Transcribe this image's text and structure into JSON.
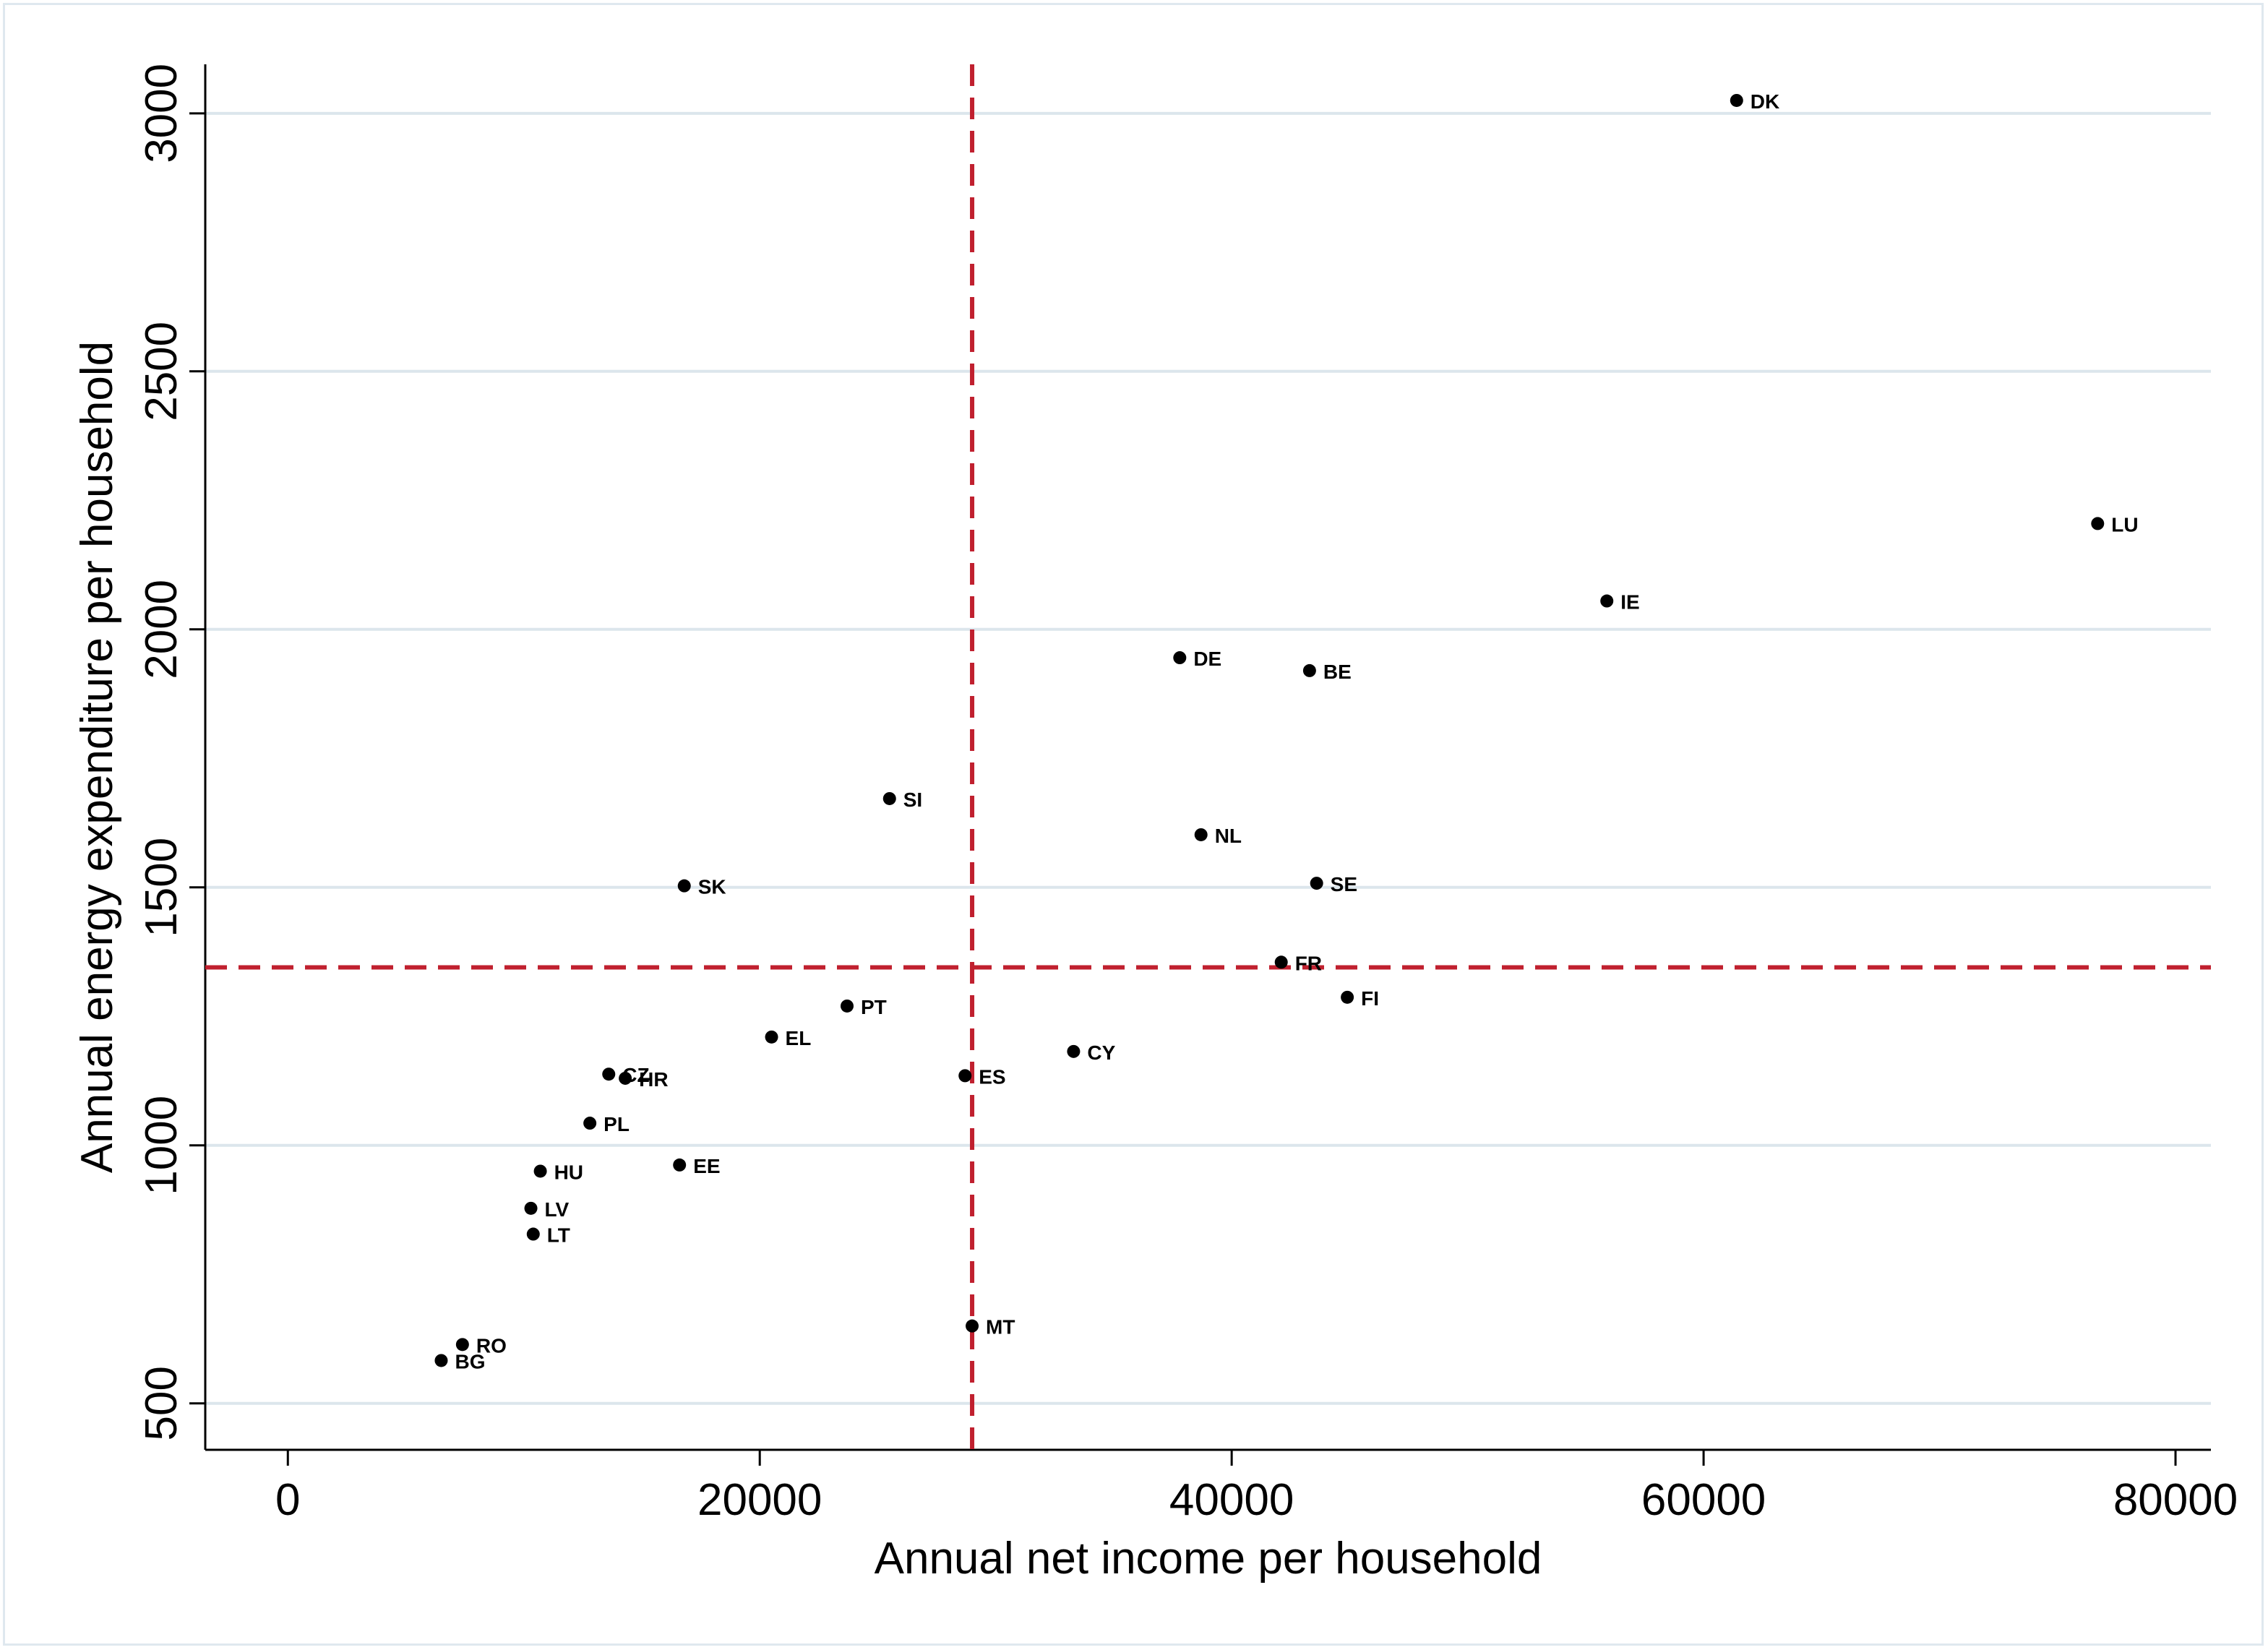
{
  "chart_data": {
    "type": "scatter",
    "xlabel": "Annual net income per household",
    "ylabel": "Annual energy expenditure per household",
    "xlim": [
      -3500,
      81500
    ],
    "ylim": [
      410,
      3095
    ],
    "x_ticks": [
      0,
      20000,
      40000,
      60000,
      80000
    ],
    "y_ticks": [
      500,
      1000,
      1500,
      2000,
      2500,
      3000
    ],
    "grid": "horizontal",
    "reference_lines": {
      "vertical_x": 29000,
      "horizontal_y": 1345,
      "color": "#c0202f",
      "style": "dashed"
    },
    "marker_color": "#000000",
    "points": [
      {
        "label": "DK",
        "x": 61400,
        "y": 3025
      },
      {
        "label": "LU",
        "x": 76700,
        "y": 2205
      },
      {
        "label": "IE",
        "x": 55900,
        "y": 2055
      },
      {
        "label": "DE",
        "x": 37800,
        "y": 1945
      },
      {
        "label": "BE",
        "x": 43300,
        "y": 1920
      },
      {
        "label": "SI",
        "x": 25500,
        "y": 1672
      },
      {
        "label": "NL",
        "x": 38700,
        "y": 1602
      },
      {
        "label": "SE",
        "x": 43600,
        "y": 1508
      },
      {
        "label": "SK",
        "x": 16800,
        "y": 1503
      },
      {
        "label": "FR",
        "x": 42100,
        "y": 1355
      },
      {
        "label": "FI",
        "x": 44900,
        "y": 1287
      },
      {
        "label": "PT",
        "x": 23700,
        "y": 1270
      },
      {
        "label": "EL",
        "x": 20500,
        "y": 1210
      },
      {
        "label": "CY",
        "x": 33300,
        "y": 1182
      },
      {
        "label": "CZ",
        "x": 13600,
        "y": 1138
      },
      {
        "label": "HR",
        "x": 14300,
        "y": 1130
      },
      {
        "label": "ES",
        "x": 28700,
        "y": 1135
      },
      {
        "label": "PL",
        "x": 12800,
        "y": 1043
      },
      {
        "label": "EE",
        "x": 16600,
        "y": 962
      },
      {
        "label": "HU",
        "x": 10700,
        "y": 950
      },
      {
        "label": "LV",
        "x": 10300,
        "y": 878
      },
      {
        "label": "LT",
        "x": 10400,
        "y": 828
      },
      {
        "label": "MT",
        "x": 29000,
        "y": 650
      },
      {
        "label": "RO",
        "x": 7400,
        "y": 614
      },
      {
        "label": "BG",
        "x": 6500,
        "y": 583
      }
    ]
  }
}
